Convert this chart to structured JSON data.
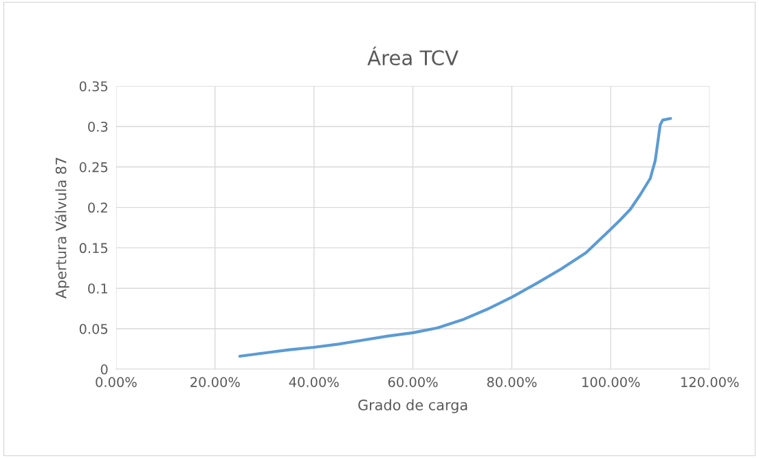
{
  "chart_data": {
    "type": "line",
    "title": "Área TCV",
    "xlabel": "Grado de carga",
    "ylabel": "Apertura Válvula 87",
    "x": [
      0.25,
      0.3,
      0.35,
      0.4,
      0.45,
      0.5,
      0.55,
      0.6,
      0.65,
      0.7,
      0.75,
      0.8,
      0.85,
      0.9,
      0.95,
      1.0,
      1.02,
      1.04,
      1.06,
      1.08,
      1.09,
      1.095,
      1.1,
      1.105,
      1.121
    ],
    "series": [
      {
        "color": "#5b9bd5",
        "values": [
          0.016,
          0.02,
          0.024,
          0.027,
          0.031,
          0.036,
          0.041,
          0.045,
          0.051,
          0.061,
          0.074,
          0.089,
          0.106,
          0.124,
          0.144,
          0.173,
          0.185,
          0.198,
          0.216,
          0.236,
          0.258,
          0.28,
          0.302,
          0.308,
          0.31
        ]
      }
    ],
    "xlim": [
      0,
      1.2
    ],
    "xticks": [
      {
        "value": 0,
        "label": "0.00%"
      },
      {
        "value": 0.2,
        "label": "20.00%"
      },
      {
        "value": 0.4,
        "label": "40.00%"
      },
      {
        "value": 0.6,
        "label": "60.00%"
      },
      {
        "value": 0.8,
        "label": "80.00%"
      },
      {
        "value": 1.0,
        "label": "100.00%"
      },
      {
        "value": 1.2,
        "label": "120.00%"
      }
    ],
    "ylim": [
      0,
      0.35
    ],
    "yticks": [
      0,
      0.05,
      0.1,
      0.15,
      0.2,
      0.25,
      0.3,
      0.35
    ],
    "grid": true,
    "marker": "none",
    "line_style": "solid"
  }
}
